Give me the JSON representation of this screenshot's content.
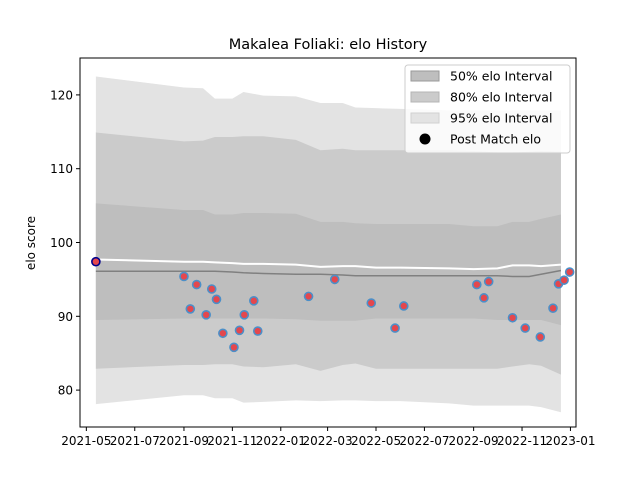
{
  "chart_data": {
    "type": "line",
    "title": "Makalea Foliaki: elo History",
    "xlabel": "",
    "ylabel": "elo score",
    "x_axis": {
      "kind": "date",
      "range": [
        "2021-04-23",
        "2023-01-08"
      ],
      "ticks": [
        "2021-05-01",
        "2021-07-01",
        "2021-09-01",
        "2021-11-01",
        "2022-01-01",
        "2022-03-01",
        "2022-05-01",
        "2022-07-01",
        "2022-09-01",
        "2022-11-01",
        "2023-01-01"
      ],
      "tick_labels": [
        "2021-05",
        "2021-07",
        "2021-09",
        "2021-11",
        "2022-01",
        "2022-03",
        "2022-05",
        "2022-07",
        "2022-09",
        "2022-11",
        "2023-01"
      ]
    },
    "y_axis": {
      "range": [
        75,
        125
      ],
      "ticks": [
        80,
        90,
        100,
        110,
        120
      ],
      "tick_labels": [
        "80",
        "90",
        "100",
        "110",
        "120"
      ]
    },
    "grid": false,
    "legend": {
      "placement": "top-right",
      "entries": [
        {
          "label": "50% elo Interval",
          "kind": "band",
          "color": "#b0b0b0"
        },
        {
          "label": "80% elo Interval",
          "kind": "band",
          "color": "#c8c8c8"
        },
        {
          "label": "95% elo Interval",
          "kind": "band",
          "color": "#e0e0e0"
        },
        {
          "label": "Post Match elo",
          "kind": "marker",
          "color": "#000000"
        }
      ]
    },
    "colors": {
      "band95": "#e3e3e3",
      "band80": "#cbcbcb",
      "band50": "#bebebe",
      "median_line": "#808080",
      "mean_line": "#ffffff",
      "point_fill": "#e4474d",
      "point_edge": "#4c8fc8",
      "first_point_edge": "#00008b"
    },
    "bands": {
      "dates": [
        "2021-05-13",
        "2021-09-01",
        "2021-09-25",
        "2021-10-10",
        "2021-11-01",
        "2021-11-15",
        "2021-12-10",
        "2022-01-20",
        "2022-02-20",
        "2022-03-20",
        "2022-04-05",
        "2022-05-01",
        "2022-06-01",
        "2022-08-01",
        "2022-09-01",
        "2022-10-01",
        "2022-10-20",
        "2022-11-10",
        "2022-11-25",
        "2022-12-20"
      ],
      "upper95": [
        122.5,
        121.0,
        120.9,
        119.5,
        119.5,
        120.4,
        119.9,
        119.8,
        118.9,
        118.9,
        118.3,
        118.2,
        118.1,
        117.9,
        117.9,
        117.9,
        117.9,
        117.9,
        117.9,
        117.9
      ],
      "upper80": [
        114.9,
        113.7,
        113.8,
        114.3,
        114.3,
        114.4,
        114.4,
        113.9,
        112.5,
        112.7,
        112.5,
        112.5,
        112.5,
        112.5,
        112.4,
        112.2,
        112.2,
        112.3,
        112.4,
        112.3
      ],
      "upper50": [
        105.3,
        104.4,
        104.4,
        103.8,
        103.8,
        104.0,
        104.0,
        103.9,
        102.8,
        102.8,
        102.6,
        102.5,
        102.5,
        102.5,
        102.2,
        102.2,
        102.8,
        102.8,
        103.2,
        103.8
      ],
      "median": [
        96.1,
        96.1,
        96.1,
        96.1,
        96.0,
        95.9,
        95.8,
        95.7,
        95.7,
        95.6,
        95.5,
        95.5,
        95.5,
        95.5,
        95.5,
        95.5,
        95.4,
        95.4,
        95.7,
        96.2
      ],
      "mean": [
        97.7,
        97.4,
        97.4,
        97.3,
        97.2,
        97.1,
        97.1,
        97.0,
        96.7,
        96.8,
        96.8,
        96.6,
        96.6,
        96.5,
        96.4,
        96.5,
        96.9,
        96.9,
        96.8,
        97.0
      ],
      "lower50": [
        89.5,
        89.7,
        89.7,
        89.7,
        89.7,
        89.7,
        89.7,
        89.6,
        89.4,
        89.4,
        89.4,
        89.7,
        89.7,
        89.7,
        89.7,
        89.5,
        89.5,
        89.5,
        89.5,
        88.8
      ],
      "lower80": [
        82.9,
        83.4,
        83.4,
        83.5,
        83.5,
        83.2,
        83.1,
        83.5,
        82.6,
        83.4,
        83.6,
        82.9,
        82.9,
        82.9,
        82.9,
        82.9,
        83.2,
        83.5,
        83.3,
        82.1
      ],
      "lower95": [
        78.1,
        79.3,
        79.3,
        78.9,
        78.9,
        78.3,
        78.4,
        78.6,
        78.5,
        78.6,
        78.6,
        78.5,
        78.5,
        78.2,
        77.9,
        77.9,
        77.9,
        77.9,
        77.7,
        77.0
      ]
    },
    "post_match_elo": {
      "dates": [
        "2021-05-13",
        "2021-09-01",
        "2021-09-09",
        "2021-09-17",
        "2021-09-29",
        "2021-10-06",
        "2021-10-12",
        "2021-10-20",
        "2021-11-03",
        "2021-11-10",
        "2021-11-16",
        "2021-11-28",
        "2021-12-03",
        "2022-02-05",
        "2022-03-10",
        "2022-04-25",
        "2022-05-25",
        "2022-06-05",
        "2022-09-05",
        "2022-09-14",
        "2022-09-20",
        "2022-10-20",
        "2022-11-05",
        "2022-11-24",
        "2022-12-10",
        "2022-12-17",
        "2022-12-24",
        "2022-12-31"
      ],
      "values": [
        97.4,
        95.4,
        91.0,
        94.3,
        90.2,
        93.7,
        92.3,
        87.7,
        85.8,
        88.1,
        90.2,
        92.1,
        88.0,
        92.7,
        95.0,
        91.8,
        88.4,
        91.4,
        94.3,
        92.5,
        94.7,
        89.8,
        88.4,
        87.2,
        91.1,
        94.4,
        94.9,
        96.0
      ]
    }
  }
}
